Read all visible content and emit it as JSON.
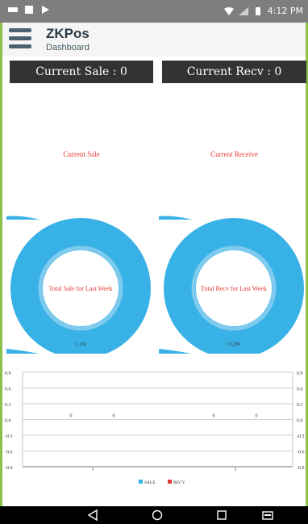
{
  "status_bar": {
    "time": "4:12 PM"
  },
  "app": {
    "title": "ZKPos",
    "subtitle": "Dashboard"
  },
  "cards": {
    "current_sale": "Current Sale : 0",
    "current_recv": "Current Recv : 0"
  },
  "labels": {
    "current_sale": "Current Sale",
    "current_receive": "Current Receive"
  },
  "chart_data": [
    {
      "type": "pie",
      "center_text": "Total Sale for Last Week",
      "value_label": "1,150",
      "color": "#38b1e6"
    },
    {
      "type": "pie",
      "center_text": "Total Recv for Last Week",
      "value_label": "13,200",
      "color": "#38b1e6"
    },
    {
      "type": "bar",
      "ylim": [
        -0.9,
        0.9
      ],
      "y_ticks": [
        "0.9",
        "0.6",
        "0.3",
        "0.0",
        "-0.3",
        "-0.6",
        "-0.9"
      ],
      "value_labels": [
        "0",
        "0",
        "0",
        "0"
      ],
      "x_labels": [
        "1",
        "1"
      ],
      "series": [
        {
          "name": "SALE",
          "color": "#38b1e6"
        },
        {
          "name": "RECV",
          "color": "#e53935"
        }
      ],
      "legend_placement": "bottom-center"
    }
  ]
}
